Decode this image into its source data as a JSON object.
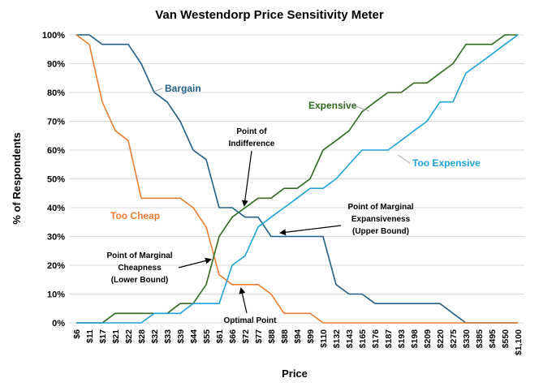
{
  "chart_data": {
    "type": "line",
    "title": "Van Westendorp Price Sensitivity Meter",
    "xlabel": "Price",
    "ylabel": "% of Respondents",
    "ylim": [
      0,
      100
    ],
    "yticks": [
      "0%",
      "10%",
      "20%",
      "30%",
      "40%",
      "50%",
      "60%",
      "70%",
      "80%",
      "90%",
      "100%"
    ],
    "grid": true,
    "categories": [
      "$6",
      "$11",
      "$17",
      "$21",
      "$22",
      "$28",
      "$32",
      "$33",
      "$39",
      "$44",
      "$55",
      "$61",
      "$66",
      "$72",
      "$77",
      "$88",
      "$88",
      "$94",
      "$99",
      "$110",
      "$132",
      "$143",
      "$165",
      "$176",
      "$187",
      "$193",
      "$198",
      "$209",
      "$220",
      "$275",
      "$330",
      "$385",
      "$495",
      "$550",
      "$1,100"
    ],
    "series": [
      {
        "name": "Bargain",
        "color": "#1f5f86",
        "values": [
          100,
          100,
          96.7,
          96.7,
          96.7,
          90,
          80,
          76.7,
          70,
          60,
          56.7,
          40,
          40,
          36.7,
          36.7,
          30,
          30,
          30,
          30,
          30,
          13.3,
          10,
          10,
          6.7,
          6.7,
          6.7,
          6.7,
          6.7,
          6.7,
          3.3,
          0,
          0,
          0,
          0,
          0
        ]
      },
      {
        "name": "Too Cheap",
        "color": "#ed7d31",
        "values": [
          100,
          96.7,
          76.7,
          66.7,
          63.3,
          43.3,
          43.3,
          43.3,
          43.3,
          40,
          33.3,
          16.7,
          13.3,
          13.3,
          13.3,
          10,
          3.3,
          3.3,
          3.3,
          0,
          0,
          0,
          0,
          0,
          0,
          0,
          0,
          0,
          0,
          0,
          0,
          0,
          0,
          0,
          0
        ]
      },
      {
        "name": "Expensive",
        "color": "#2e6b1f",
        "values": [
          0,
          0,
          0,
          3.3,
          3.3,
          3.3,
          3.3,
          3.3,
          6.7,
          6.7,
          13.3,
          30,
          36.7,
          40,
          43.3,
          43.3,
          46.7,
          46.7,
          50,
          60,
          63.3,
          66.7,
          73.3,
          76.7,
          80,
          80,
          83.3,
          83.3,
          86.7,
          90,
          96.7,
          96.7,
          96.7,
          100,
          100
        ]
      },
      {
        "name": "Too Expensive",
        "color": "#1ea4d8",
        "values": [
          0,
          0,
          0,
          0,
          0,
          0,
          3.3,
          3.3,
          3.3,
          6.7,
          6.7,
          6.7,
          20,
          23.3,
          33.3,
          36.7,
          40,
          43.3,
          46.7,
          46.7,
          50,
          55,
          60,
          60,
          60,
          63.3,
          66.7,
          70,
          76.7,
          76.7,
          86.7,
          90,
          93.3,
          96.7,
          100
        ]
      }
    ],
    "annotations": [
      {
        "lines": [
          "Point of",
          "Indifference"
        ]
      },
      {
        "lines": [
          "Point of Marginal",
          "Expansiveness",
          "(Upper Bound)"
        ]
      },
      {
        "lines": [
          "Point of Marginal",
          "Cheapness",
          "(Lower Bound)"
        ]
      },
      {
        "lines": [
          "Optimal Point"
        ]
      }
    ]
  }
}
